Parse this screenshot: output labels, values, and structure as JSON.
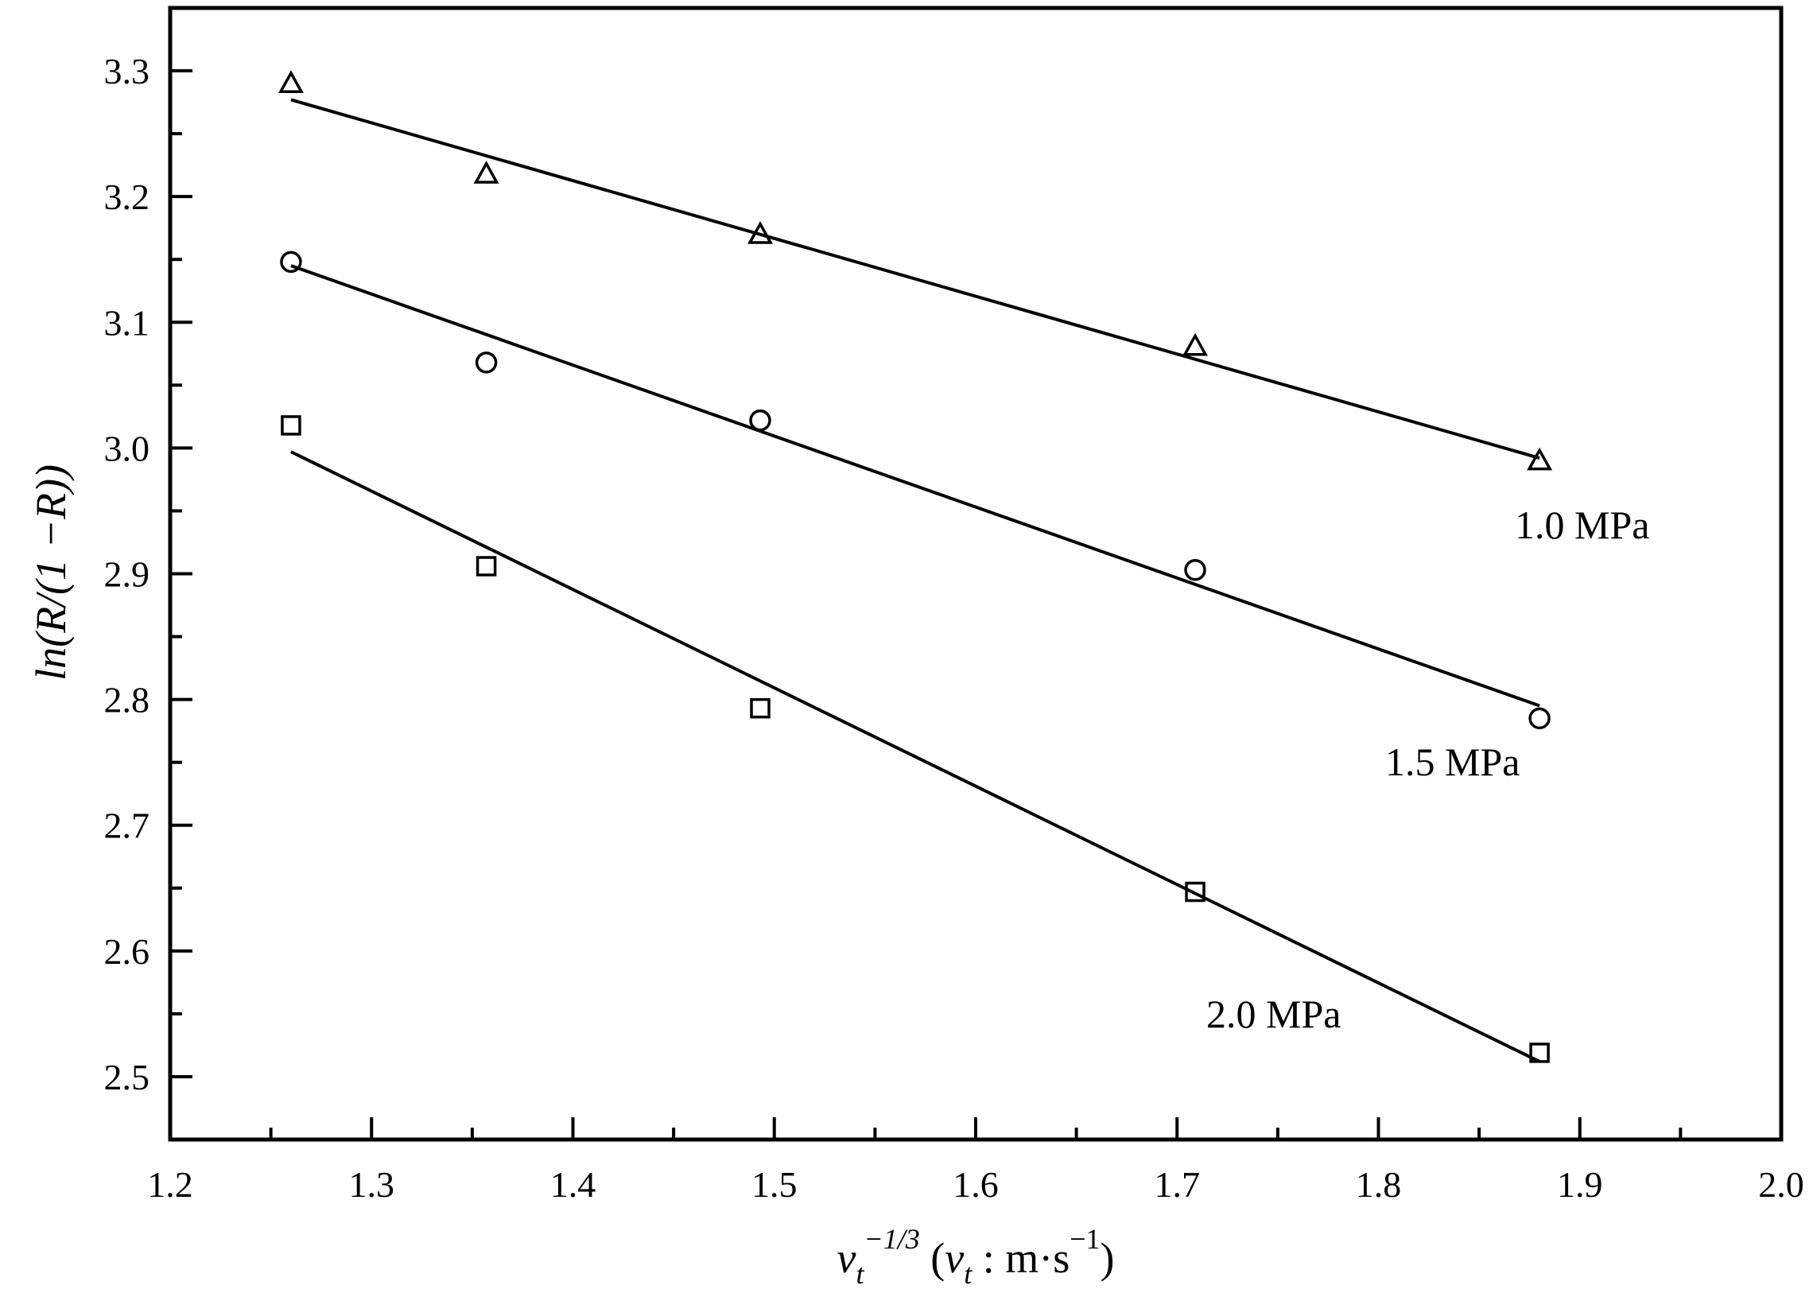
{
  "chart_data": {
    "type": "scatter",
    "title": "",
    "xlabel": {
      "base": "v",
      "sub": "t",
      "sup": "−1/3",
      "unit_prefix": " (",
      "unit_var": "v",
      "unit_var_sub": "t",
      "unit_rest": " : m·s",
      "unit_sup": "−1",
      "unit_close": ")"
    },
    "ylabel": "ln(R/(1 −R))",
    "xlim": [
      1.2,
      2.0
    ],
    "ylim": [
      2.45,
      3.35
    ],
    "xticks": [
      "1.2",
      "1.3",
      "1.4",
      "1.5",
      "1.6",
      "1.7",
      "1.8",
      "1.9",
      "2.0"
    ],
    "yticks": [
      "2.5",
      "2.6",
      "2.7",
      "2.8",
      "2.9",
      "3.0",
      "3.1",
      "3.2",
      "3.3"
    ],
    "x": [
      1.26,
      1.357,
      1.493,
      1.709,
      1.88
    ],
    "series": [
      {
        "name": "1.0 MPa",
        "marker": "triangle",
        "values": [
          3.29,
          3.218,
          3.17,
          3.081,
          2.99
        ],
        "fit": [
          [
            1.26,
            3.277
          ],
          [
            1.88,
            2.992
          ]
        ]
      },
      {
        "name": "1.5 MPa",
        "marker": "circle",
        "values": [
          3.148,
          3.068,
          3.022,
          2.903,
          2.785
        ],
        "fit": [
          [
            1.26,
            3.145
          ],
          [
            1.88,
            2.795
          ]
        ]
      },
      {
        "name": "2.0 MPa",
        "marker": "square",
        "values": [
          3.018,
          2.906,
          2.793,
          2.647,
          2.519
        ],
        "fit": [
          [
            1.26,
            2.997
          ],
          [
            1.88,
            2.512
          ]
        ]
      }
    ],
    "grid": false,
    "legend": "none"
  }
}
